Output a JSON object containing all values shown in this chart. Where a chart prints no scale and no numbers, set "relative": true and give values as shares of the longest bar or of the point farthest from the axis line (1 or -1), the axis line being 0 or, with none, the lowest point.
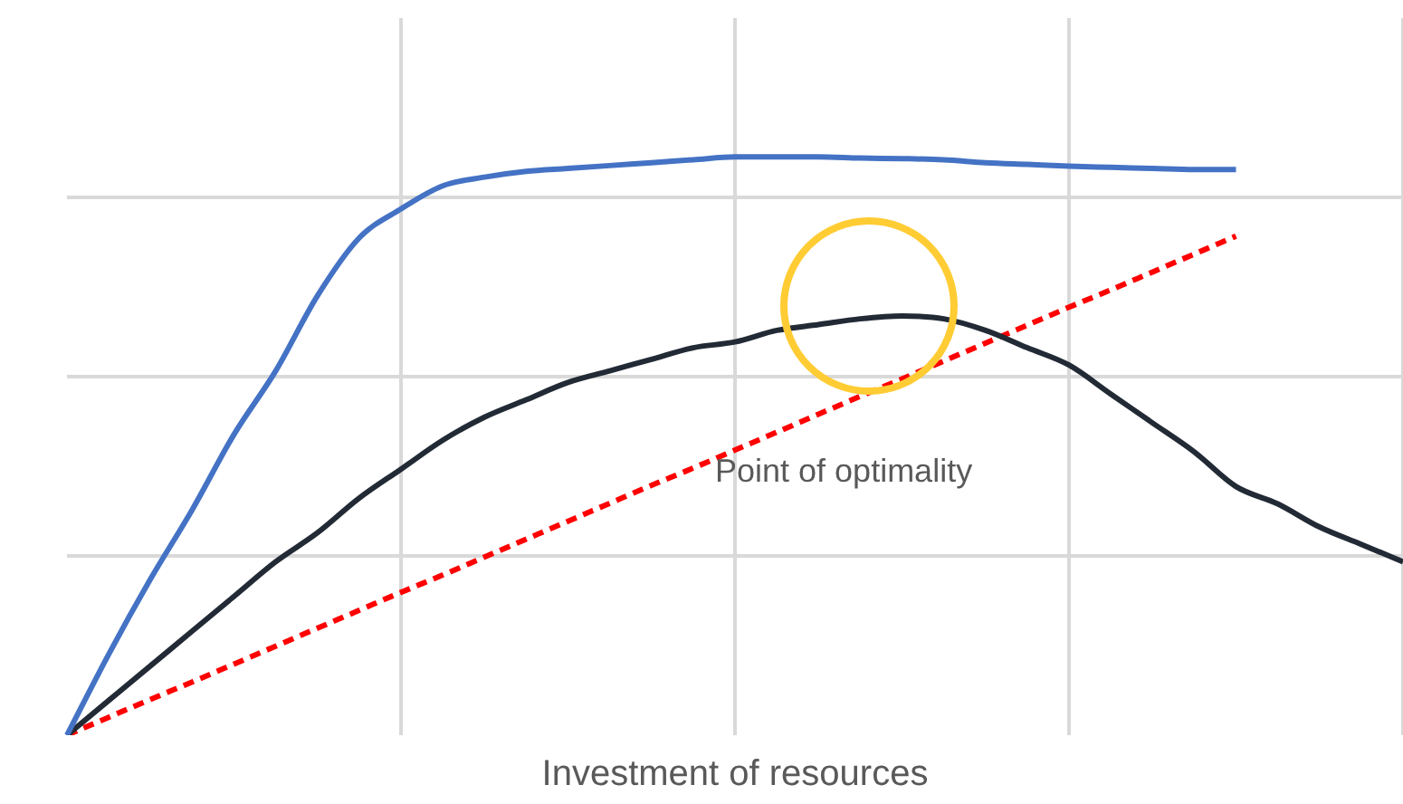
{
  "chart_data": {
    "type": "line",
    "relative": true,
    "xlabel": "Investment of resources",
    "categories": [
      null,
      null,
      null,
      null,
      null,
      null,
      null,
      null,
      null,
      null,
      null,
      null,
      null,
      null,
      null,
      null,
      null,
      null,
      null,
      null,
      null,
      null,
      null,
      null,
      null,
      null,
      null,
      null,
      null,
      null,
      null,
      null,
      null
    ],
    "series": [
      {
        "color": "#4472c4",
        "values": [
          0,
          0.14,
          0.27,
          0.39,
          0.52,
          0.63,
          0.76,
          0.86,
          0.91,
          0.95,
          0.965,
          0.975,
          0.98,
          0.985,
          0.99,
          0.995,
          1,
          1,
          1,
          0.998,
          0.997,
          0.995,
          0.99,
          0.987,
          0.984,
          0.982,
          0.98,
          0.978,
          0.978,
          null,
          null,
          null,
          null
        ]
      },
      {
        "color": "#222a35",
        "values": [
          0,
          0.06,
          0.12,
          0.18,
          0.24,
          0.3,
          0.35,
          0.41,
          0.46,
          0.51,
          0.55,
          0.58,
          0.61,
          0.63,
          0.65,
          0.67,
          0.68,
          0.7,
          0.71,
          0.72,
          0.725,
          0.72,
          0.7,
          0.67,
          0.64,
          0.59,
          0.54,
          0.49,
          0.43,
          0.4,
          0.36,
          0.33,
          0.3
        ]
      },
      {
        "color": "#ff0000",
        "line_style": "dashed",
        "values": [
          0,
          0.031,
          0.062,
          0.092,
          0.123,
          0.154,
          0.185,
          0.216,
          0.247,
          0.277,
          0.308,
          0.339,
          0.37,
          0.401,
          0.432,
          0.462,
          0.493,
          0.524,
          0.555,
          0.586,
          0.616,
          0.647,
          0.678,
          0.709,
          0.74,
          0.77,
          0.801,
          0.832,
          0.863,
          null,
          null,
          null,
          null
        ]
      }
    ],
    "annotations": [
      "Point of optimality"
    ],
    "grid": true,
    "legend": false,
    "marker": "none"
  }
}
